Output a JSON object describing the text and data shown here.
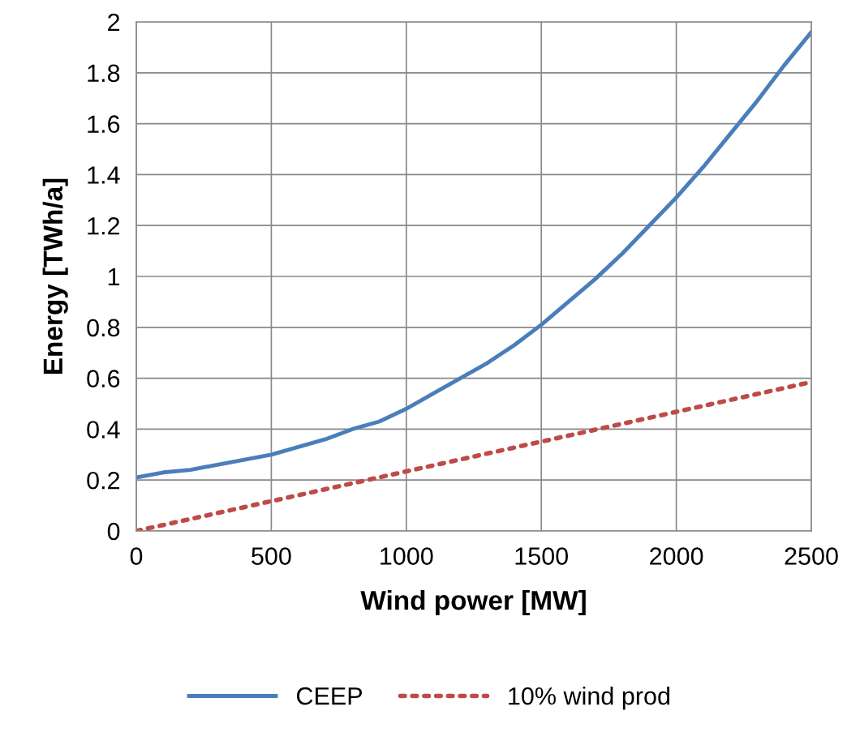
{
  "chart_data": {
    "type": "line",
    "xlabel": "Wind power [MW]",
    "ylabel": "Energy [TWh/a]",
    "xlim": [
      0,
      2500
    ],
    "xticks": [
      0,
      500,
      1000,
      1500,
      2000,
      2500
    ],
    "ylim": [
      0,
      2
    ],
    "yticks": [
      0,
      0.2,
      0.4,
      0.6,
      0.8,
      1,
      1.2,
      1.4,
      1.6,
      1.8,
      2
    ],
    "grid": true,
    "legend": "bottom",
    "marker": "none",
    "series": [
      {
        "name": "CEEP",
        "color": "#4a7ebb",
        "line_style": "solid",
        "x": [
          0,
          100,
          200,
          300,
          400,
          500,
          600,
          700,
          800,
          900,
          1000,
          1100,
          1200,
          1300,
          1400,
          1500,
          1600,
          1700,
          1800,
          1900,
          2000,
          2100,
          2200,
          2300,
          2400,
          2500
        ],
        "values": [
          0.21,
          0.23,
          0.24,
          0.26,
          0.28,
          0.3,
          0.33,
          0.36,
          0.4,
          0.43,
          0.48,
          0.54,
          0.6,
          0.66,
          0.73,
          0.81,
          0.9,
          0.99,
          1.09,
          1.2,
          1.31,
          1.43,
          1.56,
          1.69,
          1.83,
          1.96
        ]
      },
      {
        "name": "10% wind prod",
        "color": "#be4b48",
        "line_style": "dotted",
        "x": [
          0,
          500,
          1000,
          1500,
          2000,
          2500
        ],
        "values": [
          0,
          0.117,
          0.234,
          0.351,
          0.468,
          0.585
        ]
      }
    ]
  }
}
